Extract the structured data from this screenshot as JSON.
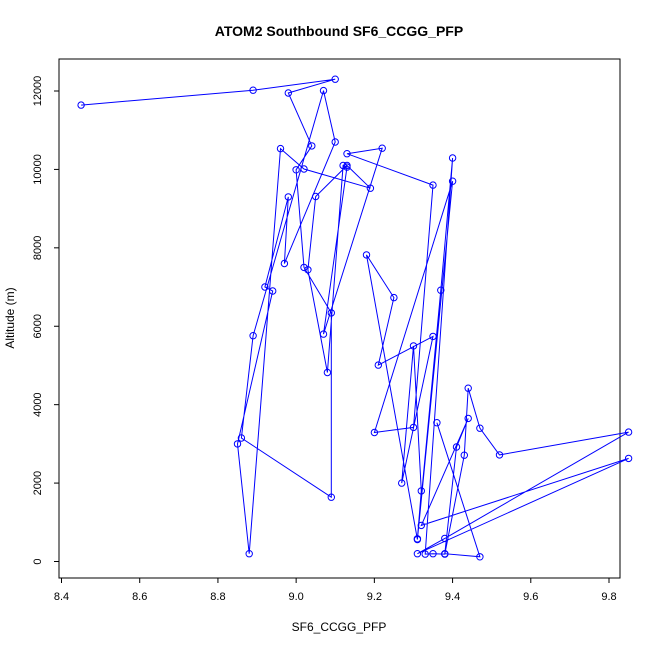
{
  "chart_data": {
    "type": "line",
    "title": "ATOM2 Southbound SF6_CCGG_PFP",
    "xlabel": "SF6_CCGG_PFP",
    "ylabel": "Altitude (m)",
    "xlim": [
      8.4,
      9.9
    ],
    "ylim": [
      0,
      12500
    ],
    "x_ticks": [
      "8.4",
      "8.6",
      "8.8",
      "9.0",
      "9.2",
      "9.4",
      "9.6",
      "9.8"
    ],
    "y_ticks": [
      "0",
      "2000",
      "4000",
      "6000",
      "8000",
      "10000",
      "12000"
    ],
    "grid": false,
    "series": [
      {
        "color": "#0000ff",
        "marker": "open-circle",
        "x": [
          8.45,
          8.89,
          9.1,
          8.98,
          9.04,
          9.0,
          9.02,
          9.09,
          9.09,
          8.86,
          8.89,
          9.07,
          9.1,
          8.97,
          8.98,
          8.92,
          8.94,
          8.85,
          8.88,
          8.96,
          9.02,
          9.19,
          9.13,
          9.05,
          9.03,
          9.08,
          9.12,
          9.13,
          9.07,
          9.22,
          9.13,
          9.35,
          9.3,
          9.2,
          9.4,
          9.31,
          9.18,
          9.25,
          9.21,
          9.35,
          9.27,
          9.3,
          9.32,
          9.31,
          9.37,
          9.4,
          9.33,
          9.35,
          9.38,
          9.43,
          9.44,
          9.47,
          9.52,
          9.85,
          9.38,
          9.31,
          9.85,
          9.32,
          9.44,
          9.41,
          9.38,
          9.47,
          9.36
        ],
        "y": [
          11640,
          12020,
          12300,
          11950,
          10600,
          9990,
          7500,
          6340,
          1640,
          3150,
          5760,
          12010,
          10700,
          7600,
          9300,
          7000,
          6900,
          3000,
          200,
          10530,
          10010,
          9520,
          10100,
          9310,
          7440,
          4820,
          10100,
          10060,
          5800,
          10540,
          10400,
          9600,
          3420,
          3290,
          9700,
          560,
          7820,
          6730,
          5010,
          5740,
          2000,
          5500,
          1800,
          580,
          6920,
          10290,
          190,
          200,
          190,
          2710,
          4420,
          3400,
          2720,
          3300,
          590,
          200,
          2630,
          920,
          3650,
          2920,
          200,
          120,
          3540
        ]
      }
    ]
  }
}
